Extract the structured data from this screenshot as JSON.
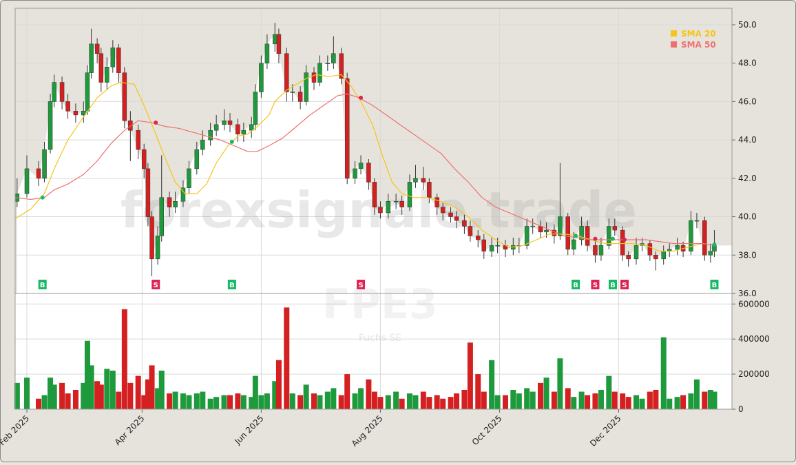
{
  "chart_data": {
    "type": "candlestick",
    "title": "FPE3",
    "subtitle": "Fuchs SE",
    "watermark": "forexsignale.trade",
    "x": [
      -5,
      0,
      6,
      9,
      12,
      14,
      18,
      21,
      25,
      29,
      31,
      33,
      36,
      38,
      41,
      44,
      47,
      50,
      53,
      57,
      60,
      62,
      64,
      67,
      69,
      73,
      76,
      80,
      83,
      87,
      90,
      94,
      97,
      101,
      104,
      108,
      111,
      115,
      117,
      120,
      123,
      127,
      129,
      133,
      136,
      140,
      143,
      147,
      150,
      154,
      157,
      161,
      164,
      168,
      171,
      175,
      178,
      181,
      185,
      189,
      192,
      196,
      199,
      203,
      206,
      210,
      213,
      217,
      220,
      224,
      227,
      231,
      234,
      238,
      241,
      245,
      249,
      252,
      256,
      259,
      263,
      266,
      270,
      273,
      277,
      280,
      284,
      287,
      291,
      294,
      298,
      301,
      305,
      308,
      312,
      315,
      319,
      322,
      326,
      329,
      333,
      336,
      340,
      343,
      347,
      350,
      352
    ],
    "open": [
      40.8,
      41.2,
      42.5,
      42.0,
      43.5,
      46.0,
      47.0,
      46.0,
      45.5,
      45.3,
      45.5,
      47.5,
      49.0,
      48.5,
      47.0,
      47.8,
      48.8,
      47.5,
      45.0,
      44.5,
      43.5,
      42.5,
      40.0,
      37.8,
      39.0,
      41.0,
      40.5,
      40.8,
      41.5,
      42.5,
      43.5,
      44.0,
      44.5,
      44.8,
      45.0,
      44.8,
      44.3,
      44.5,
      44.8,
      46.5,
      48.0,
      49.0,
      49.5,
      48.5,
      46.5,
      46.5,
      46.0,
      47.5,
      47.0,
      48.0,
      48.0,
      48.5,
      47.2,
      42.0,
      42.5,
      42.8,
      41.8,
      40.5,
      40.2,
      40.8,
      40.8,
      40.5,
      41.8,
      42.0,
      41.8,
      41.0,
      40.5,
      40.2,
      40.0,
      39.8,
      39.5,
      39.0,
      38.8,
      38.2,
      38.5,
      38.5,
      38.3,
      38.5,
      38.5,
      39.5,
      39.5,
      39.2,
      39.3,
      39.0,
      40.0,
      38.3,
      38.8,
      39.5,
      38.5,
      38.0,
      38.5,
      39.5,
      39.3,
      38.0,
      37.8,
      38.5,
      38.6,
      38.0,
      37.8,
      38.2,
      38.3,
      38.5,
      38.2,
      39.8,
      39.8,
      38.0,
      38.2
    ],
    "high": [
      42.0,
      43.2,
      42.9,
      43.9,
      46.4,
      47.4,
      47.3,
      46.4,
      45.9,
      46.0,
      47.9,
      49.8,
      49.3,
      48.8,
      48.3,
      49.2,
      49.0,
      47.8,
      45.5,
      44.8,
      43.8,
      42.8,
      40.3,
      39.5,
      43.2,
      41.3,
      41.3,
      41.9,
      42.9,
      43.9,
      44.5,
      44.9,
      45.3,
      45.6,
      45.4,
      45.1,
      44.9,
      45.2,
      46.9,
      48.4,
      49.5,
      50.1,
      49.8,
      48.8,
      46.9,
      46.8,
      47.9,
      47.8,
      48.4,
      48.4,
      49.4,
      48.8,
      47.5,
      42.9,
      43.2,
      43.0,
      42.0,
      40.8,
      41.2,
      41.2,
      41.1,
      42.2,
      42.7,
      42.6,
      42.0,
      41.2,
      40.7,
      40.5,
      40.3,
      40.1,
      39.8,
      39.3,
      39.1,
      38.9,
      38.9,
      38.8,
      38.9,
      38.9,
      39.9,
      39.9,
      39.8,
      39.7,
      39.6,
      42.8,
      40.2,
      39.2,
      40.0,
      39.8,
      38.8,
      38.9,
      39.9,
      39.9,
      39.5,
      38.2,
      38.9,
      38.9,
      38.8,
      38.2,
      38.5,
      38.6,
      38.9,
      38.7,
      40.3,
      40.2,
      40.0,
      38.6,
      39.3
    ],
    "low": [
      40.5,
      41.0,
      41.6,
      41.8,
      43.3,
      45.7,
      45.6,
      45.1,
      44.9,
      44.9,
      45.3,
      47.2,
      48.0,
      46.5,
      46.6,
      47.5,
      47.0,
      44.6,
      42.9,
      43.0,
      42.0,
      39.5,
      36.9,
      37.5,
      38.7,
      40.0,
      40.2,
      40.5,
      41.2,
      42.2,
      43.2,
      43.7,
      44.2,
      44.5,
      44.4,
      43.9,
      43.9,
      44.1,
      44.5,
      46.2,
      47.7,
      48.6,
      48.0,
      46.0,
      46.0,
      45.6,
      45.8,
      46.6,
      46.8,
      47.6,
      47.7,
      46.9,
      41.7,
      41.7,
      42.2,
      41.4,
      40.1,
      39.9,
      39.9,
      40.4,
      40.1,
      40.3,
      41.5,
      41.4,
      40.7,
      40.1,
      39.8,
      39.7,
      39.4,
      39.1,
      38.7,
      38.4,
      37.8,
      37.9,
      38.1,
      37.9,
      38.0,
      38.1,
      38.3,
      39.1,
      38.9,
      38.9,
      38.6,
      38.8,
      38.0,
      38.0,
      38.5,
      38.2,
      37.6,
      37.7,
      38.3,
      39.0,
      37.7,
      37.4,
      37.5,
      38.2,
      37.7,
      37.2,
      37.5,
      37.9,
      38.0,
      37.9,
      38.0,
      39.4,
      37.7,
      37.6,
      37.9
    ],
    "close": [
      41.2,
      42.5,
      42.0,
      43.5,
      46.0,
      47.0,
      46.0,
      45.5,
      45.3,
      45.5,
      47.5,
      49.0,
      48.5,
      47.0,
      47.8,
      48.8,
      47.5,
      45.0,
      44.5,
      43.5,
      42.5,
      40.0,
      37.8,
      39.0,
      41.0,
      40.5,
      40.8,
      41.5,
      42.5,
      43.5,
      44.0,
      44.5,
      44.8,
      45.0,
      44.8,
      44.3,
      44.5,
      44.8,
      46.5,
      48.0,
      49.0,
      49.5,
      48.5,
      46.5,
      46.5,
      46.0,
      47.5,
      47.0,
      48.0,
      48.0,
      48.5,
      47.2,
      42.0,
      42.5,
      42.8,
      41.8,
      40.5,
      40.2,
      40.8,
      40.8,
      40.5,
      41.8,
      42.0,
      41.8,
      41.0,
      40.5,
      40.2,
      40.0,
      39.8,
      39.5,
      39.0,
      38.8,
      38.2,
      38.5,
      38.5,
      38.3,
      38.5,
      38.5,
      39.5,
      39.5,
      39.2,
      39.3,
      39.0,
      40.0,
      38.3,
      38.8,
      39.5,
      38.5,
      38.0,
      38.5,
      39.5,
      39.3,
      38.0,
      37.8,
      38.5,
      38.6,
      38.0,
      37.8,
      38.2,
      38.3,
      38.5,
      38.2,
      39.8,
      39.8,
      38.0,
      38.2,
      38.5
    ],
    "volume": [
      150000,
      180000,
      60000,
      80000,
      180000,
      140000,
      150000,
      90000,
      110000,
      150000,
      390000,
      250000,
      160000,
      140000,
      230000,
      220000,
      100000,
      570000,
      150000,
      190000,
      80000,
      170000,
      250000,
      120000,
      220000,
      90000,
      100000,
      90000,
      80000,
      90000,
      100000,
      60000,
      70000,
      80000,
      80000,
      90000,
      80000,
      70000,
      190000,
      80000,
      90000,
      160000,
      280000,
      580000,
      90000,
      80000,
      140000,
      90000,
      80000,
      100000,
      120000,
      80000,
      200000,
      90000,
      120000,
      170000,
      100000,
      70000,
      80000,
      100000,
      60000,
      90000,
      80000,
      100000,
      70000,
      80000,
      60000,
      70000,
      90000,
      110000,
      380000,
      200000,
      100000,
      280000,
      80000,
      80000,
      110000,
      90000,
      120000,
      100000,
      150000,
      180000,
      100000,
      290000,
      120000,
      70000,
      100000,
      80000,
      90000,
      110000,
      190000,
      100000,
      90000,
      70000,
      80000,
      60000,
      100000,
      110000,
      410000,
      60000,
      70000,
      80000,
      90000,
      170000,
      100000,
      110000,
      100000
    ],
    "up_color": "#1e9a3c",
    "down_color": "#d42020",
    "xlim": [
      -6,
      361
    ],
    "xticks": [
      {
        "value": 0,
        "label": "Feb 2025"
      },
      {
        "value": 59,
        "label": "Apr 2025"
      },
      {
        "value": 120,
        "label": "Jun 2025"
      },
      {
        "value": 181,
        "label": "Aug 2025"
      },
      {
        "value": 242,
        "label": "Oct 2025"
      },
      {
        "value": 303,
        "label": "Dec 2025"
      }
    ],
    "ylim": [
      36,
      50.86
    ],
    "yticks": [
      {
        "value": 36,
        "label": "36.0"
      },
      {
        "value": 38,
        "label": "38.0"
      },
      {
        "value": 40,
        "label": "40.0"
      },
      {
        "value": 42,
        "label": "42.0"
      },
      {
        "value": 44,
        "label": "44.0"
      },
      {
        "value": 46,
        "label": "46.0"
      },
      {
        "value": 48,
        "label": "48.0"
      },
      {
        "value": 50,
        "label": "50.0"
      }
    ],
    "volume_ylim": [
      0,
      660000
    ],
    "volume_yticks": [
      0,
      200000,
      400000,
      600000
    ],
    "overlays": [
      {
        "name": "SMA 20",
        "color": "#f5c518",
        "x": [
          -6,
          2,
          9,
          14,
          21,
          29,
          36,
          43,
          48,
          55,
          60,
          66,
          71,
          76,
          81,
          87,
          92,
          97,
          103,
          108,
          113,
          118,
          124,
          127,
          133,
          138,
          143,
          148,
          155,
          161,
          166,
          171,
          177,
          182,
          187,
          192,
          198,
          205,
          212,
          219,
          226,
          233,
          240,
          247,
          254,
          261,
          268,
          275,
          282,
          289,
          296,
          303,
          310,
          317,
          324,
          331,
          338,
          346,
          353
        ],
        "values": [
          39.9,
          40.4,
          41.2,
          42.5,
          44.0,
          45.2,
          46.2,
          46.8,
          47.0,
          46.9,
          45.8,
          44.3,
          43.0,
          41.8,
          41.2,
          41.2,
          41.7,
          42.8,
          43.7,
          44.2,
          44.3,
          44.7,
          45.3,
          46.0,
          46.6,
          46.9,
          47.2,
          47.4,
          47.3,
          47.4,
          46.8,
          46.0,
          44.8,
          43.2,
          41.8,
          41.2,
          41.0,
          41.0,
          40.8,
          40.5,
          40.0,
          39.3,
          38.8,
          38.4,
          38.5,
          38.8,
          39.1,
          39.1,
          39.0,
          38.8,
          38.6,
          38.6,
          38.6,
          38.5,
          38.2,
          38.2,
          38.4,
          38.6,
          38.5
        ]
      },
      {
        "name": "SMA 50",
        "color": "#f07070",
        "x": [
          -6,
          2,
          9,
          14,
          21,
          29,
          36,
          43,
          50,
          57,
          64,
          71,
          78,
          85,
          92,
          99,
          106,
          113,
          118,
          124,
          131,
          138,
          145,
          152,
          159,
          164,
          170,
          177,
          184,
          191,
          198,
          205,
          212,
          219,
          226,
          233,
          240,
          247,
          254,
          261,
          268,
          275,
          282,
          289,
          296,
          303,
          310,
          317,
          324,
          331,
          338,
          346,
          353
        ],
        "values": [
          41.0,
          40.9,
          41.0,
          41.4,
          41.7,
          42.2,
          42.9,
          43.8,
          44.5,
          45.0,
          44.9,
          44.7,
          44.6,
          44.4,
          44.2,
          44.0,
          43.7,
          43.4,
          43.4,
          43.7,
          44.1,
          44.7,
          45.3,
          45.8,
          46.3,
          46.4,
          46.2,
          45.8,
          45.3,
          44.8,
          44.3,
          43.8,
          43.3,
          42.5,
          41.8,
          41.0,
          40.5,
          40.2,
          39.9,
          39.6,
          39.3,
          39.0,
          38.9,
          38.8,
          38.8,
          38.8,
          38.8,
          38.8,
          38.7,
          38.6,
          38.6,
          38.6,
          38.5
        ]
      }
    ],
    "signals": {
      "x": [
        8,
        66,
        105,
        171,
        281,
        291,
        300,
        306,
        352
      ],
      "price": [
        41.0,
        44.9,
        43.9,
        46.2,
        39.0,
        38.85,
        38.85,
        38.8,
        38.55
      ],
      "labels": [
        "B",
        "S",
        "B",
        "S",
        "B",
        "S",
        "B",
        "S",
        "B"
      ],
      "colors": [
        "#19b866",
        "#dc2455",
        "#19b866",
        "#dc2455",
        "#19b866",
        "#dc2455",
        "#19b866",
        "#dc2455",
        "#19b866"
      ]
    },
    "legend": "top-right",
    "grid": true
  }
}
